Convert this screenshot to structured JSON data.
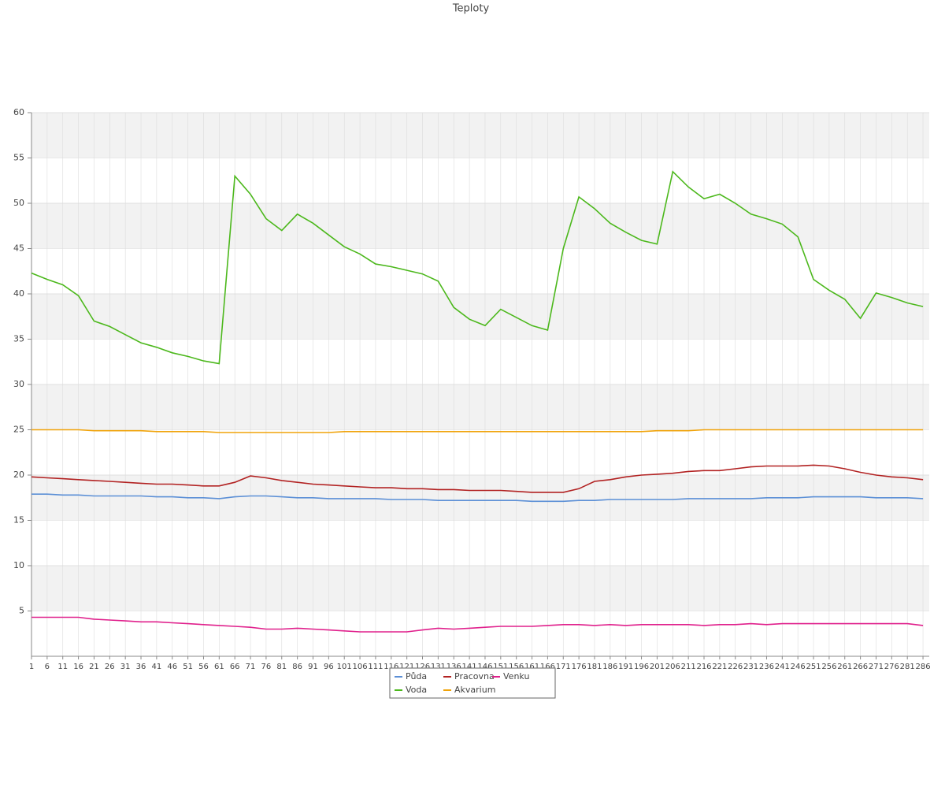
{
  "chart_data": {
    "type": "line",
    "title": "Teploty",
    "x": [
      1,
      6,
      11,
      16,
      21,
      26,
      31,
      36,
      41,
      46,
      51,
      56,
      61,
      66,
      71,
      76,
      81,
      86,
      91,
      96,
      101,
      106,
      111,
      116,
      121,
      126,
      131,
      136,
      141,
      146,
      151,
      156,
      161,
      166,
      171,
      176,
      181,
      186,
      191,
      196,
      201,
      206,
      211,
      216,
      221,
      226,
      231,
      236,
      241,
      246,
      251,
      256,
      261,
      266,
      271,
      276,
      281,
      286
    ],
    "xlim": [
      1,
      288
    ],
    "ylim": [
      0,
      60
    ],
    "yticks": [
      5,
      10,
      15,
      20,
      25,
      30,
      35,
      40,
      45,
      50,
      55,
      60
    ],
    "grid": true,
    "series": [
      {
        "name": "Půda",
        "color": "#5b8fd6",
        "values": [
          17.9,
          17.9,
          17.8,
          17.8,
          17.7,
          17.7,
          17.7,
          17.7,
          17.6,
          17.6,
          17.5,
          17.5,
          17.4,
          17.6,
          17.7,
          17.7,
          17.6,
          17.5,
          17.5,
          17.4,
          17.4,
          17.4,
          17.4,
          17.3,
          17.3,
          17.3,
          17.2,
          17.2,
          17.2,
          17.2,
          17.2,
          17.2,
          17.1,
          17.1,
          17.1,
          17.2,
          17.2,
          17.3,
          17.3,
          17.3,
          17.3,
          17.3,
          17.4,
          17.4,
          17.4,
          17.4,
          17.4,
          17.5,
          17.5,
          17.5,
          17.6,
          17.6,
          17.6,
          17.6,
          17.5,
          17.5,
          17.5,
          17.4
        ]
      },
      {
        "name": "Voda",
        "color": "#4cb81c",
        "values": [
          42.3,
          41.6,
          41.0,
          39.8,
          37.0,
          36.4,
          35.5,
          34.6,
          34.1,
          33.5,
          33.1,
          32.6,
          32.3,
          53.0,
          51.0,
          48.3,
          47.0,
          48.8,
          47.8,
          46.5,
          45.2,
          44.4,
          43.3,
          43.0,
          42.6,
          42.2,
          41.4,
          38.5,
          37.2,
          36.5,
          38.3,
          37.4,
          36.5,
          36.0,
          45,
          50.7,
          49.4,
          47.8,
          46.8,
          45.9,
          45.5,
          53.5,
          51.8,
          50.5,
          51.0,
          50.0,
          48.8,
          48.3,
          47.7,
          46.3,
          41.6,
          40.4,
          39.4,
          37.3,
          40.1,
          39.6,
          39.0,
          38.6
        ]
      },
      {
        "name": "Pracovna",
        "color": "#b22222",
        "values": [
          19.8,
          19.7,
          19.6,
          19.5,
          19.4,
          19.3,
          19.2,
          19.1,
          19.0,
          19.0,
          18.9,
          18.8,
          18.8,
          19.2,
          19.9,
          19.7,
          19.4,
          19.2,
          19.0,
          18.9,
          18.8,
          18.7,
          18.6,
          18.6,
          18.5,
          18.5,
          18.4,
          18.4,
          18.3,
          18.3,
          18.3,
          18.2,
          18.1,
          18.1,
          18.1,
          18.5,
          19.3,
          19.5,
          19.8,
          20.0,
          20.1,
          20.2,
          20.4,
          20.5,
          20.5,
          20.7,
          20.9,
          21.0,
          21.0,
          21.0,
          21.1,
          21.0,
          20.7,
          20.3,
          20.0,
          19.8,
          19.7,
          19.5
        ]
      },
      {
        "name": "Akvarium",
        "color": "#f0a30a",
        "values": [
          25.0,
          25.0,
          25.0,
          25.0,
          24.9,
          24.9,
          24.9,
          24.9,
          24.8,
          24.8,
          24.8,
          24.8,
          24.7,
          24.7,
          24.7,
          24.7,
          24.7,
          24.7,
          24.7,
          24.7,
          24.8,
          24.8,
          24.8,
          24.8,
          24.8,
          24.8,
          24.8,
          24.8,
          24.8,
          24.8,
          24.8,
          24.8,
          24.8,
          24.8,
          24.8,
          24.8,
          24.8,
          24.8,
          24.8,
          24.8,
          24.9,
          24.9,
          24.9,
          25.0,
          25.0,
          25.0,
          25.0,
          25.0,
          25.0,
          25.0,
          25.0,
          25.0,
          25.0,
          25.0,
          25.0,
          25.0,
          25.0,
          25.0
        ]
      },
      {
        "name": "Venku",
        "color": "#e0208c",
        "values": [
          4.3,
          4.3,
          4.3,
          4.3,
          4.1,
          4.0,
          3.9,
          3.8,
          3.8,
          3.7,
          3.6,
          3.5,
          3.4,
          3.3,
          3.2,
          3.0,
          3.0,
          3.1,
          3.0,
          2.9,
          2.8,
          2.7,
          2.7,
          2.7,
          2.7,
          2.9,
          3.1,
          3.0,
          3.1,
          3.2,
          3.3,
          3.3,
          3.3,
          3.4,
          3.5,
          3.5,
          3.4,
          3.5,
          3.4,
          3.5,
          3.5,
          3.5,
          3.5,
          3.4,
          3.5,
          3.5,
          3.6,
          3.5,
          3.6,
          3.6,
          3.6,
          3.6,
          3.6,
          3.6,
          3.6,
          3.6,
          3.6,
          3.4
        ]
      }
    ]
  }
}
